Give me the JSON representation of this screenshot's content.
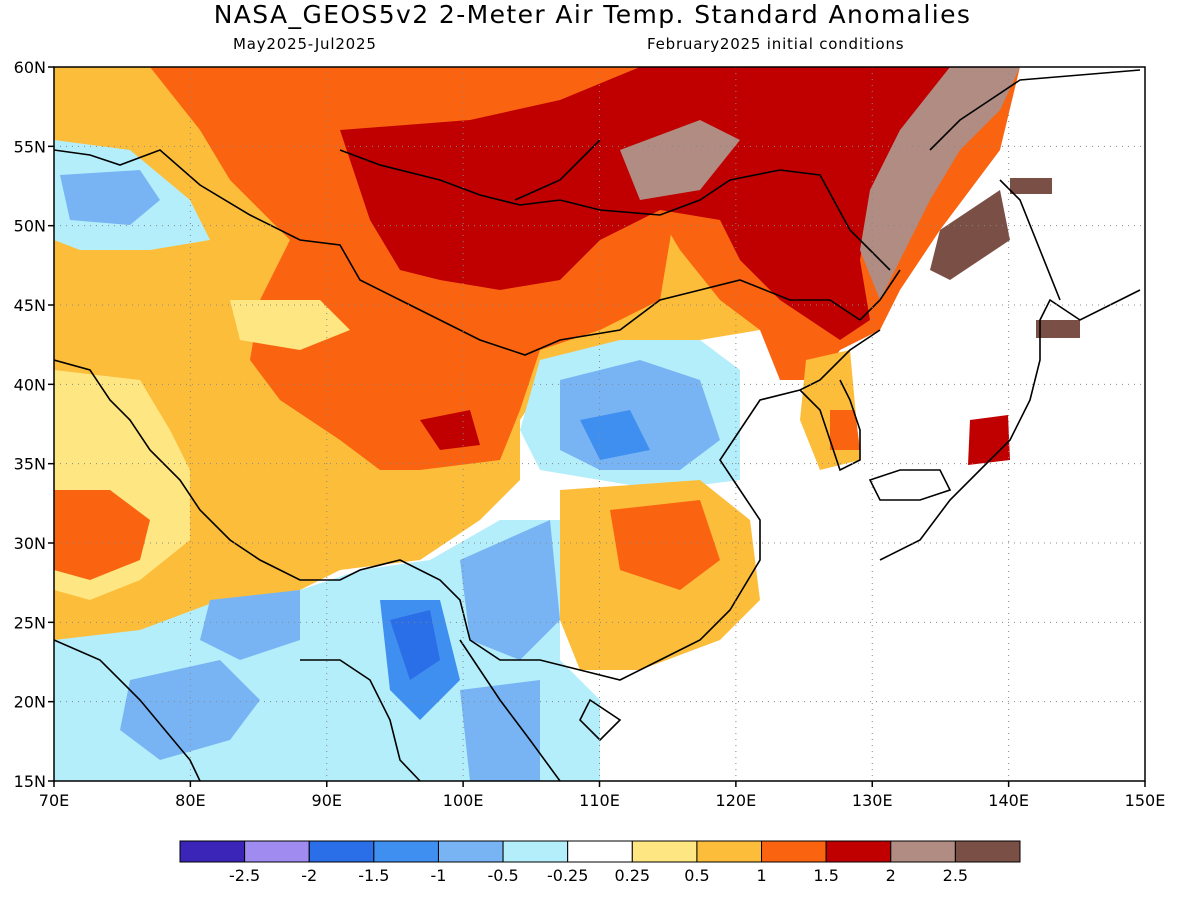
{
  "header": {
    "title": "NASA_GEOS5v2 2-Meter Air Temp. Standard Anomalies",
    "period": "May2025-Jul2025",
    "init": "February2025 initial conditions"
  },
  "map": {
    "lon_range": [
      70,
      150
    ],
    "lat_range": [
      15,
      60
    ],
    "lon_ticks": [
      "70E",
      "80E",
      "90E",
      "100E",
      "110E",
      "120E",
      "130E",
      "140E",
      "150E"
    ],
    "lat_ticks": [
      "60N",
      "55N",
      "50N",
      "45N",
      "40N",
      "35N",
      "30N",
      "25N",
      "20N",
      "15N"
    ],
    "gridlines": "dotted every 10° lon and 5° lat"
  },
  "colorbar": {
    "colors": [
      "#3b25b9",
      "#a08cf0",
      "#2a6ee8",
      "#3f8ff0",
      "#78b4f4",
      "#b4eefa",
      "#ffffff",
      "#fee682",
      "#fcbd3a",
      "#fa6410",
      "#c00000",
      "#b08c82",
      "#7a5046"
    ],
    "labels": [
      "-2.5",
      "-2",
      "-1.5",
      "-1",
      "-0.5",
      "-0.25",
      "0.25",
      "0.5",
      "1",
      "1.5",
      "2",
      "2.5"
    ]
  }
}
